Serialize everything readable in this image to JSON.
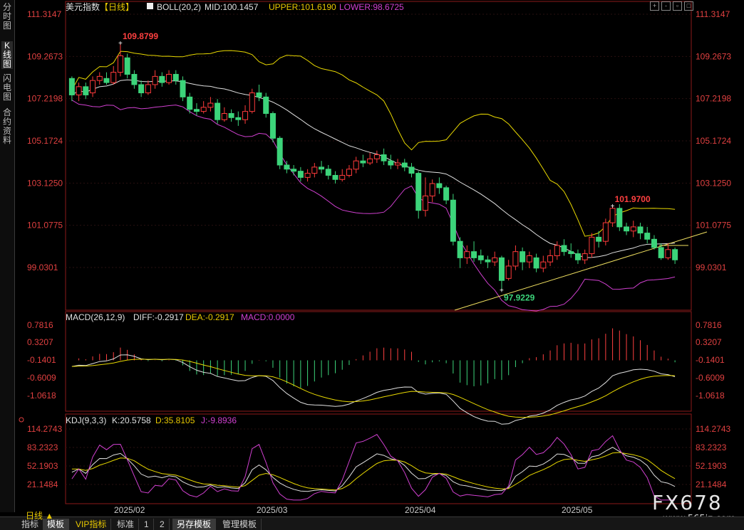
{
  "sidebar": {
    "tabs": [
      {
        "label": "分时图",
        "active": false
      },
      {
        "label": "K线图",
        "active": true
      },
      {
        "label": "闪电图",
        "active": false
      },
      {
        "label": "合约资料",
        "active": false
      }
    ]
  },
  "main_header": {
    "name": "美元指数",
    "period": "【日线】",
    "indicator": "BOLL(20,2)",
    "mid": "MID:100.1457",
    "upper": "UPPER:101.6190",
    "lower": "LOWER:98.6725"
  },
  "macd_header": {
    "indicator": "MACD(26,12,9)",
    "diff": "DIFF:-0.2917",
    "dea": "DEA:-0.2917",
    "macd": "MACD:0.0000"
  },
  "kdj_header": {
    "indicator": "KDJ(9,3,3)",
    "k": "K:20.5758",
    "d": "D:35.8105",
    "j": "J:-9.8936"
  },
  "chart_data": {
    "type": "candlestick",
    "price_ticks": [
      "111.3147",
      "109.2673",
      "107.2198",
      "105.1724",
      "103.1250",
      "101.0775",
      "99.0301"
    ],
    "macd_ticks": [
      "0.7816",
      "0.3207",
      "-0.1401",
      "-0.6009",
      "-1.0618"
    ],
    "kdj_ticks": [
      "114.2743",
      "83.2323",
      "52.1903",
      "21.1484"
    ],
    "x_labels": [
      "2025/02",
      "2025/03",
      "2025/04",
      "2025/05"
    ],
    "annotations": {
      "high_1": "109.8799",
      "low_1": "97.9229",
      "high_2": "101.9700"
    },
    "candles": [
      [
        108.2,
        107.4,
        108.3,
        107.1
      ],
      [
        107.4,
        107.8,
        108.0,
        107.1
      ],
      [
        107.8,
        107.4,
        108.0,
        107.2
      ],
      [
        107.5,
        108.1,
        108.3,
        107.3
      ],
      [
        108.1,
        108.3,
        108.5,
        107.9
      ],
      [
        108.2,
        108.0,
        108.5,
        107.9
      ],
      [
        108.0,
        108.5,
        108.8,
        107.9
      ],
      [
        108.5,
        109.3,
        109.9,
        108.3
      ],
      [
        109.2,
        108.4,
        109.4,
        108.2
      ],
      [
        108.4,
        107.9,
        108.6,
        107.7
      ],
      [
        107.9,
        107.5,
        108.1,
        107.3
      ],
      [
        107.5,
        107.9,
        108.1,
        107.4
      ],
      [
        107.9,
        108.3,
        108.6,
        107.7
      ],
      [
        108.3,
        108.0,
        108.5,
        107.8
      ],
      [
        108.0,
        108.4,
        108.6,
        107.9
      ],
      [
        108.4,
        108.1,
        108.6,
        107.9
      ],
      [
        108.1,
        107.3,
        108.3,
        107.1
      ],
      [
        107.3,
        106.7,
        107.5,
        106.5
      ],
      [
        106.7,
        106.6,
        107.0,
        106.4
      ],
      [
        106.6,
        106.8,
        107.1,
        106.5
      ],
      [
        106.8,
        107.0,
        107.3,
        106.6
      ],
      [
        107.0,
        106.2,
        107.2,
        106.0
      ],
      [
        106.2,
        106.5,
        106.8,
        106.1
      ],
      [
        106.5,
        106.3,
        106.7,
        106.1
      ],
      [
        106.3,
        106.2,
        106.6,
        105.9
      ],
      [
        106.2,
        106.6,
        106.9,
        106.0
      ],
      [
        106.6,
        107.5,
        107.7,
        106.5
      ],
      [
        107.5,
        107.3,
        107.9,
        107.1
      ],
      [
        107.3,
        106.5,
        107.5,
        106.3
      ],
      [
        106.5,
        105.3,
        106.6,
        105.1
      ],
      [
        105.3,
        104.0,
        105.4,
        103.8
      ],
      [
        104.0,
        103.8,
        104.2,
        103.6
      ],
      [
        103.8,
        103.7,
        104.0,
        103.5
      ],
      [
        103.7,
        103.4,
        103.9,
        103.2
      ],
      [
        103.4,
        103.6,
        103.8,
        103.2
      ],
      [
        103.6,
        103.9,
        104.1,
        103.4
      ],
      [
        103.9,
        103.8,
        104.2,
        103.6
      ],
      [
        103.8,
        103.5,
        104.0,
        103.3
      ],
      [
        103.5,
        103.3,
        103.7,
        103.1
      ],
      [
        103.3,
        103.5,
        103.8,
        103.2
      ],
      [
        103.5,
        103.8,
        104.0,
        103.4
      ],
      [
        103.8,
        104.2,
        104.4,
        103.6
      ],
      [
        104.2,
        104.1,
        104.5,
        103.9
      ],
      [
        104.1,
        104.3,
        104.6,
        104.0
      ],
      [
        104.3,
        104.5,
        104.7,
        104.1
      ],
      [
        104.5,
        104.2,
        104.8,
        104.0
      ],
      [
        104.2,
        104.0,
        104.5,
        103.8
      ],
      [
        104.0,
        104.1,
        104.3,
        103.8
      ],
      [
        104.1,
        103.9,
        104.3,
        103.7
      ],
      [
        103.9,
        103.6,
        104.1,
        103.4
      ],
      [
        103.6,
        101.8,
        103.7,
        101.4
      ],
      [
        101.8,
        102.5,
        103.4,
        101.5
      ],
      [
        102.5,
        103.1,
        103.3,
        102.2
      ],
      [
        103.1,
        102.9,
        103.4,
        102.6
      ],
      [
        102.9,
        102.3,
        103.0,
        102.1
      ],
      [
        102.3,
        100.3,
        102.6,
        100.1
      ],
      [
        100.3,
        99.5,
        100.5,
        99.0
      ],
      [
        99.5,
        99.8,
        100.1,
        99.2
      ],
      [
        99.8,
        99.5,
        100.3,
        99.3
      ],
      [
        99.6,
        99.4,
        99.9,
        99.2
      ],
      [
        99.4,
        99.3,
        99.6,
        99.0
      ],
      [
        99.3,
        99.5,
        99.8,
        99.1
      ],
      [
        99.5,
        98.4,
        99.6,
        97.9
      ],
      [
        98.5,
        99.1,
        99.4,
        98.4
      ],
      [
        99.1,
        99.8,
        100.1,
        98.9
      ],
      [
        99.8,
        99.3,
        100.0,
        98.9
      ],
      [
        99.3,
        99.6,
        99.8,
        99.0
      ],
      [
        99.5,
        99.0,
        99.7,
        98.8
      ],
      [
        99.0,
        99.3,
        99.6,
        98.8
      ],
      [
        99.3,
        99.6,
        99.9,
        99.1
      ],
      [
        99.6,
        100.1,
        100.3,
        99.4
      ],
      [
        100.1,
        99.8,
        100.4,
        99.6
      ],
      [
        99.8,
        99.7,
        100.2,
        99.5
      ],
      [
        99.7,
        99.4,
        99.9,
        99.2
      ],
      [
        99.4,
        99.7,
        99.9,
        99.2
      ],
      [
        99.7,
        100.5,
        100.7,
        99.5
      ],
      [
        100.5,
        100.3,
        100.8,
        100.0
      ],
      [
        100.3,
        101.2,
        101.4,
        100.1
      ],
      [
        101.2,
        101.9,
        102.0,
        101.0
      ],
      [
        101.9,
        101.0,
        102.1,
        100.8
      ],
      [
        101.0,
        100.8,
        101.2,
        100.6
      ],
      [
        100.8,
        101.0,
        101.3,
        100.5
      ],
      [
        101.0,
        100.7,
        101.2,
        100.4
      ],
      [
        100.7,
        100.4,
        101.0,
        100.2
      ],
      [
        100.4,
        100.0,
        100.6,
        99.9
      ],
      [
        100.0,
        99.5,
        100.2,
        99.4
      ],
      [
        99.5,
        99.9,
        100.2,
        99.4
      ],
      [
        99.9,
        99.4,
        100.0,
        99.2
      ]
    ]
  }
}
